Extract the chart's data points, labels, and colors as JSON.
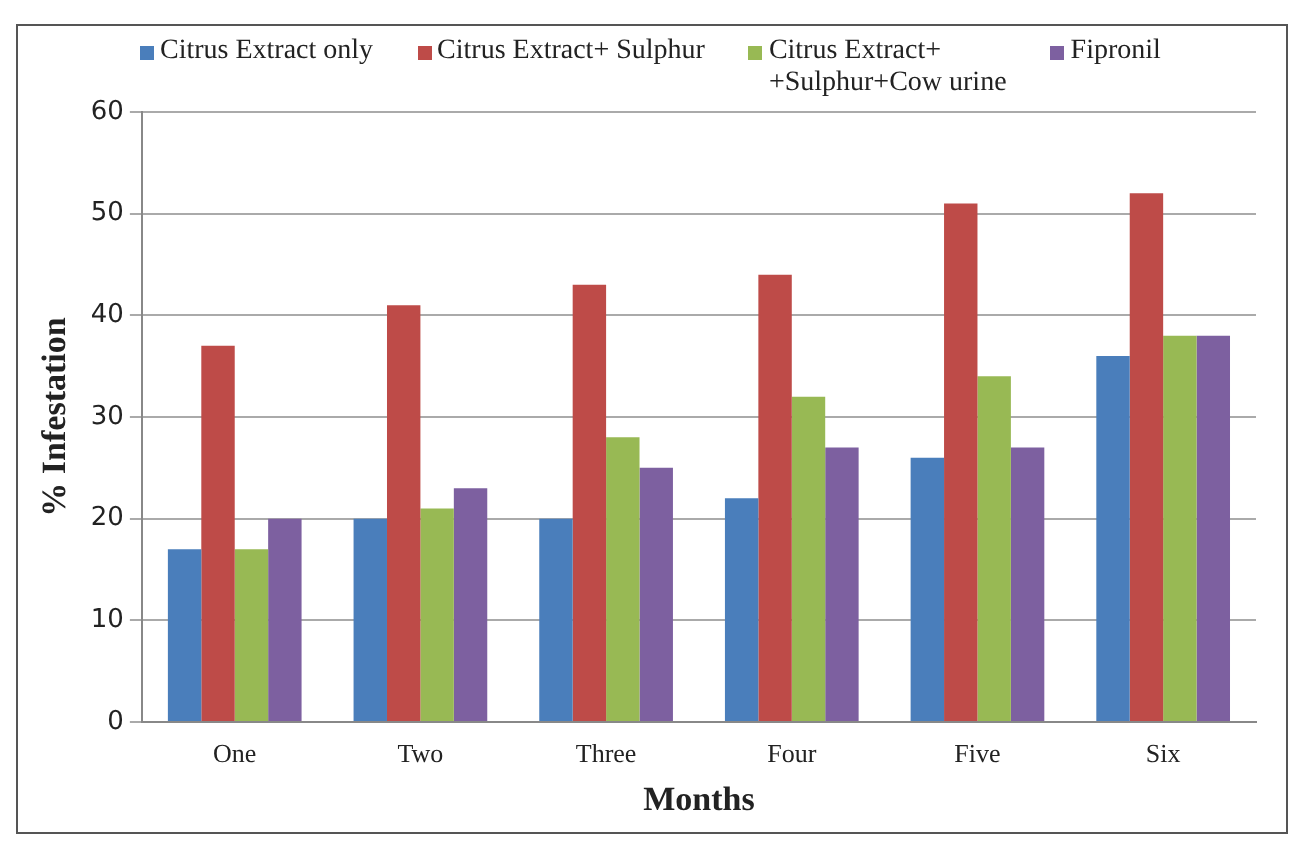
{
  "chart_data": {
    "type": "bar",
    "xlabel": "Months",
    "ylabel": "% Infestation",
    "categories": [
      "One",
      "Two",
      "Three",
      "Four",
      "Five",
      "Six"
    ],
    "series": [
      {
        "name": "Citrus Extract only",
        "color": "#4a7ebb",
        "values": [
          17,
          20,
          20,
          22,
          26,
          36
        ]
      },
      {
        "name": "Citrus Extract+ Sulphur",
        "color": "#be4b48",
        "values": [
          37,
          41,
          43,
          44,
          51,
          52
        ]
      },
      {
        "name": "Citrus Extract+\n+Sulphur+Cow urine",
        "color": "#98b954",
        "values": [
          17,
          21,
          28,
          32,
          34,
          38
        ]
      },
      {
        "name": "Fipronil",
        "color": "#7d60a0",
        "values": [
          20,
          23,
          25,
          27,
          27,
          38
        ]
      }
    ],
    "ylim": [
      0,
      60
    ],
    "yticks": [
      0,
      10,
      20,
      30,
      40,
      50,
      60
    ],
    "grid": "y",
    "legend": "top"
  }
}
